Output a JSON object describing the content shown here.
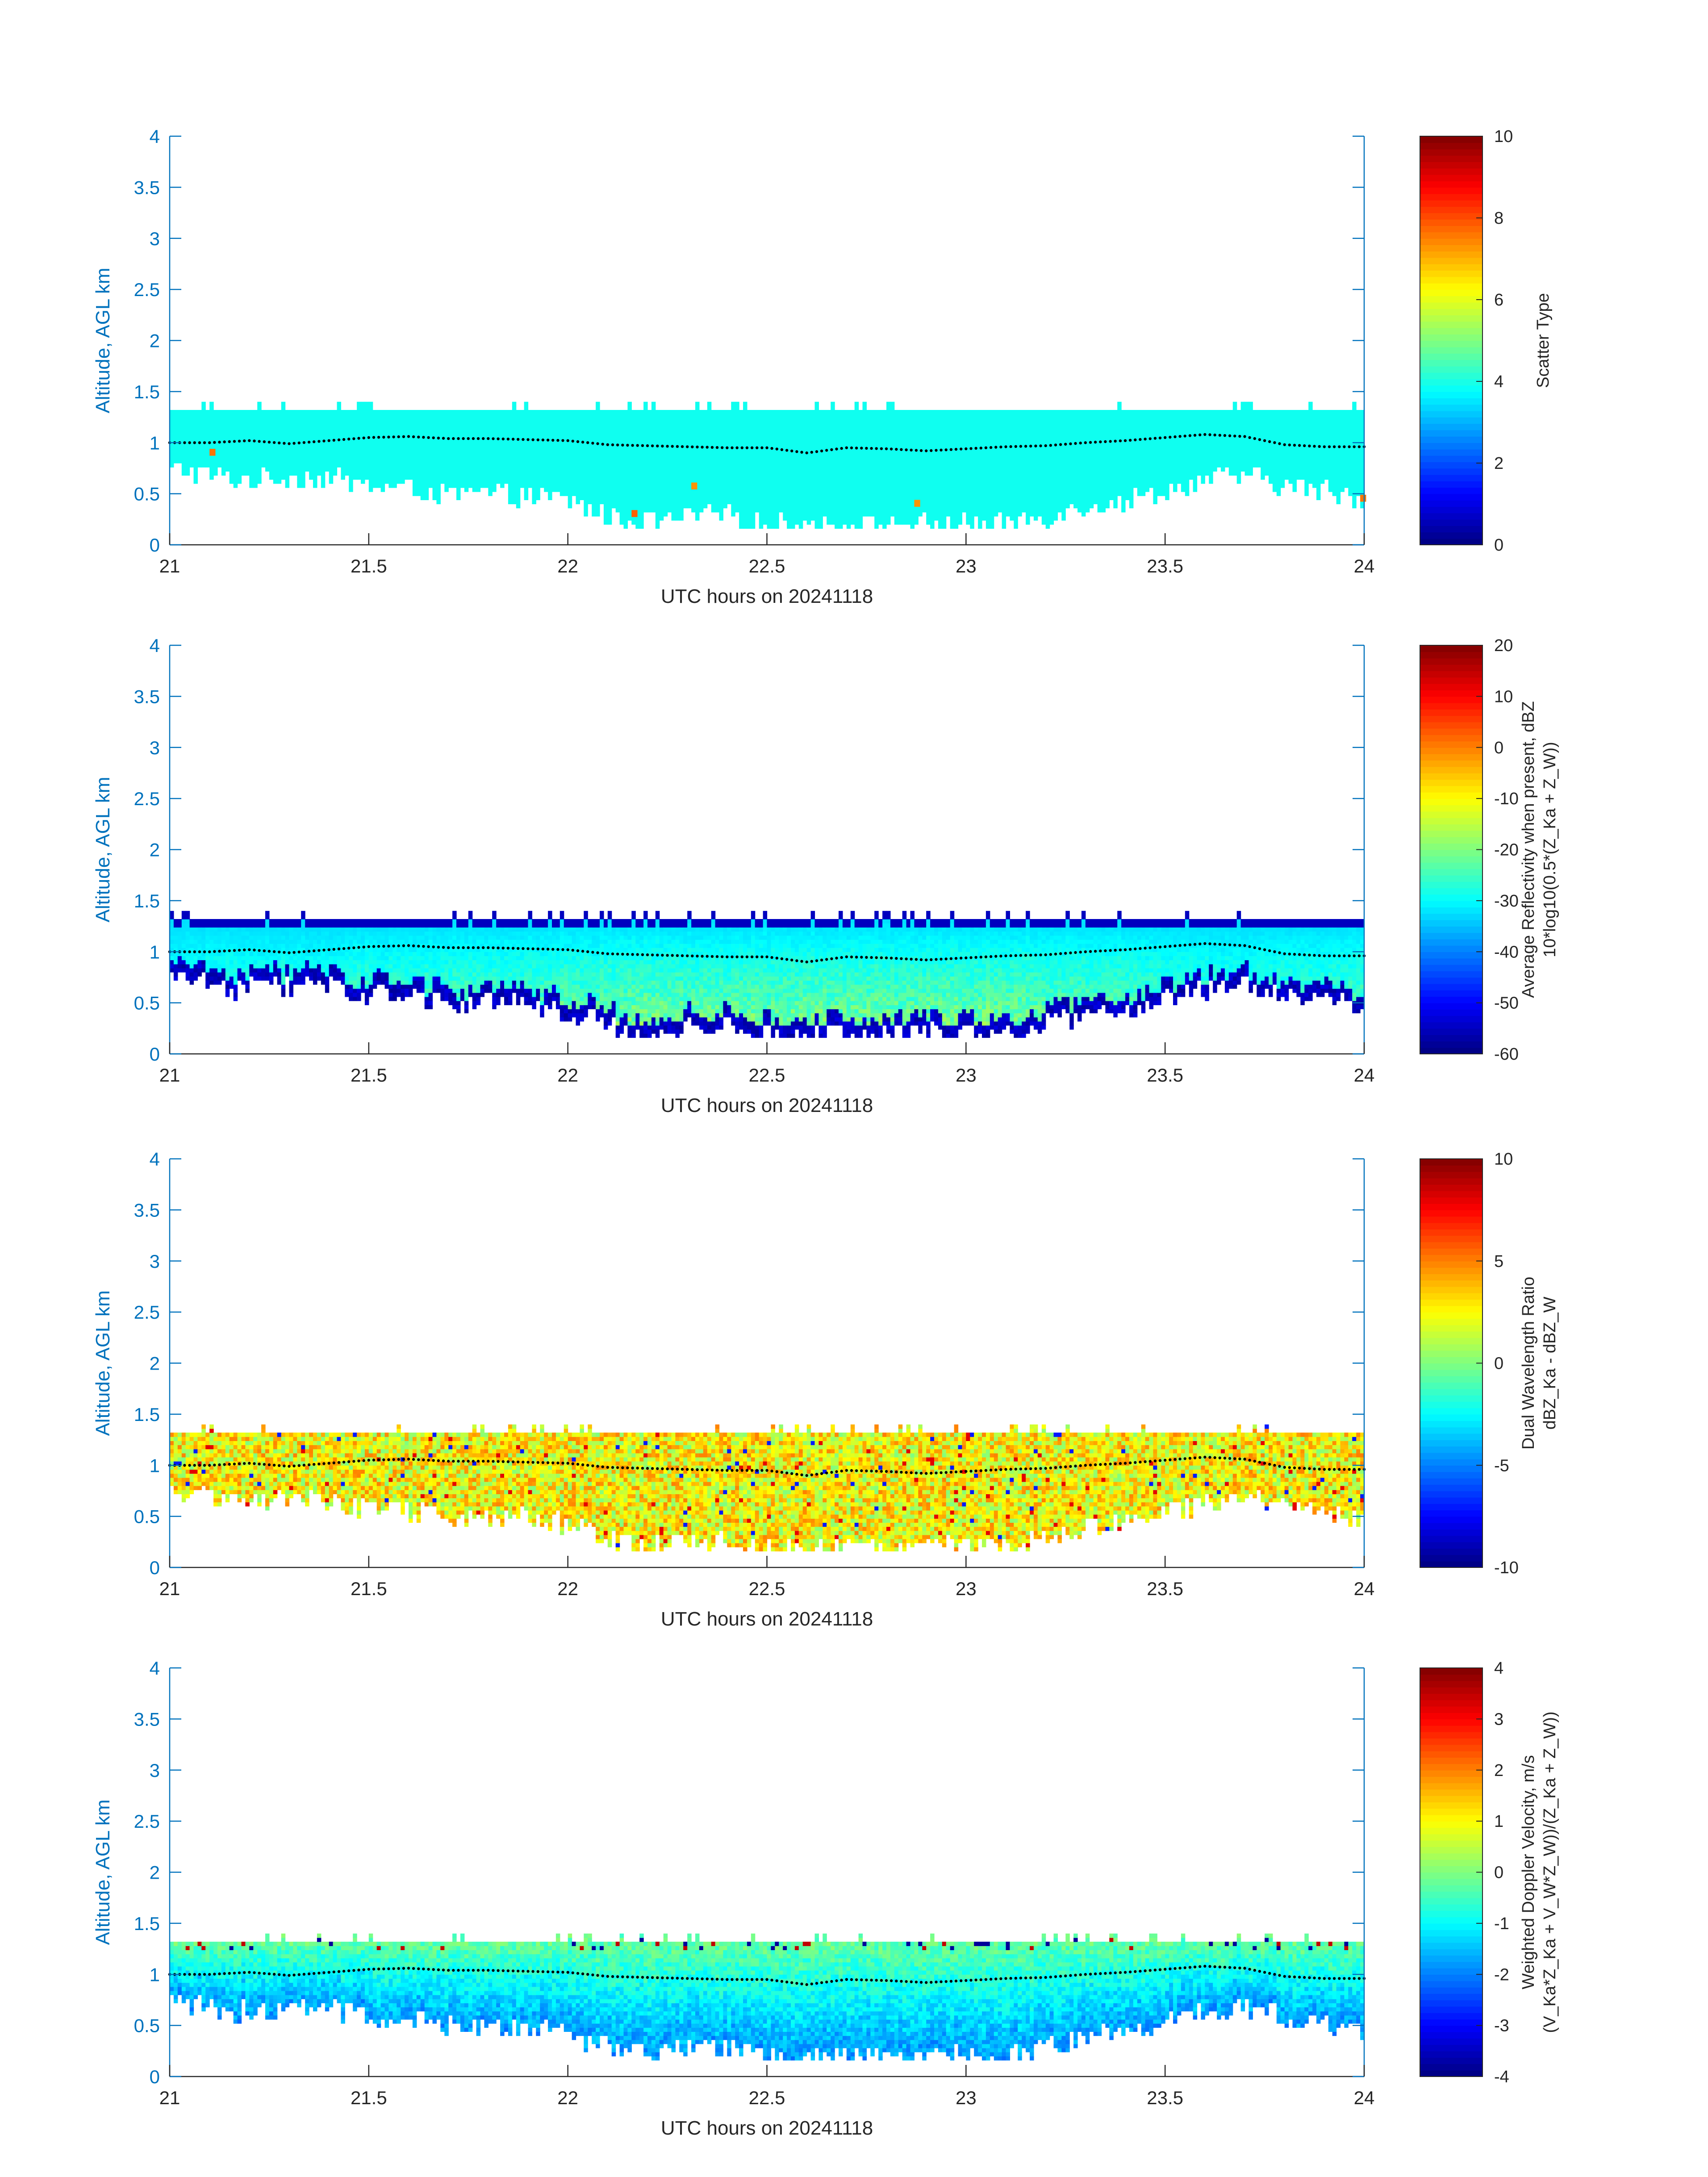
{
  "colors": {
    "axis_blue": "#0072bd",
    "text_dark": "#262626",
    "colormap": "jet"
  },
  "chart_data": [
    {
      "type": "heatmap",
      "panel_id": "scatter-type",
      "xlabel": "UTC hours on 20241118",
      "ylabel": "Altitude, AGL km",
      "xlim": [
        21,
        24
      ],
      "ylim": [
        0,
        4
      ],
      "xticks": [
        21,
        21.5,
        22,
        22.5,
        23,
        23.5,
        24
      ],
      "xtick_labels": [
        "21",
        "21.5",
        "22",
        "22.5",
        "23",
        "23.5",
        "24"
      ],
      "yticks": [
        0,
        0.5,
        1,
        1.5,
        2,
        2.5,
        3,
        3.5,
        4
      ],
      "ytick_labels": [
        "0",
        "0.5",
        "1",
        "1.5",
        "2",
        "2.5",
        "3",
        "3.5",
        "4"
      ],
      "colorbar": {
        "label_lines": [
          "Scatter Type"
        ],
        "range": [
          0,
          10
        ],
        "ticks": [
          0,
          2,
          4,
          6,
          8,
          10
        ],
        "tick_labels": [
          "0",
          "2",
          "4",
          "6",
          "8",
          "10"
        ]
      },
      "cloud_top_km": 1.32,
      "dominant_value": 3.9,
      "sparse_values": [
        {
          "x": 21.1,
          "y": 0.9,
          "value": 7.6
        },
        {
          "x": 22.16,
          "y": 0.3,
          "value": 7.8
        },
        {
          "x": 22.31,
          "y": 0.57,
          "value": 7.3
        },
        {
          "x": 22.87,
          "y": 0.4,
          "value": 7.3
        },
        {
          "x": 23.99,
          "y": 0.45,
          "value": 7.6
        }
      ]
    },
    {
      "type": "heatmap",
      "panel_id": "reflectivity",
      "xlabel": "UTC hours on 20241118",
      "ylabel": "Altitude, AGL km",
      "xlim": [
        21,
        24
      ],
      "ylim": [
        0,
        4
      ],
      "xticks": [
        21,
        21.5,
        22,
        22.5,
        23,
        23.5,
        24
      ],
      "xtick_labels": [
        "21",
        "21.5",
        "22",
        "22.5",
        "23",
        "23.5",
        "24"
      ],
      "yticks": [
        0,
        0.5,
        1,
        1.5,
        2,
        2.5,
        3,
        3.5,
        4
      ],
      "ytick_labels": [
        "0",
        "0.5",
        "1",
        "1.5",
        "2",
        "2.5",
        "3",
        "3.5",
        "4"
      ],
      "colorbar": {
        "label_lines": [
          "Average Reflectivity when present, dBZ",
          "10*log10(0.5*(Z_Ka + Z_W))"
        ],
        "range": [
          -60,
          20
        ],
        "ticks": [
          -60,
          -50,
          -40,
          -30,
          -20,
          -10,
          0,
          10,
          20
        ],
        "tick_labels": [
          "-60",
          "-50",
          "-40",
          "-30",
          "-20",
          "-10",
          "0",
          "10",
          "20"
        ]
      },
      "cloud_top_km": 1.32,
      "value_at_top": -33,
      "value_at_base": -55,
      "value_core_max": -15
    },
    {
      "type": "heatmap",
      "panel_id": "dwr",
      "xlabel": "UTC hours on 20241118",
      "ylabel": "Altitude, AGL km",
      "xlim": [
        21,
        24
      ],
      "ylim": [
        0,
        4
      ],
      "xticks": [
        21,
        21.5,
        22,
        22.5,
        23,
        23.5,
        24
      ],
      "xtick_labels": [
        "21",
        "21.5",
        "22",
        "22.5",
        "23",
        "23.5",
        "24"
      ],
      "yticks": [
        0,
        0.5,
        1,
        1.5,
        2,
        2.5,
        3,
        3.5,
        4
      ],
      "ytick_labels": [
        "0",
        "0.5",
        "1",
        "1.5",
        "2",
        "2.5",
        "3",
        "3.5",
        "4"
      ],
      "colorbar": {
        "label_lines": [
          "Dual Wavelength Ratio",
          "dBZ_Ka - dBZ_W"
        ],
        "range": [
          -10,
          10
        ],
        "ticks": [
          -10,
          -5,
          0,
          5,
          10
        ],
        "tick_labels": [
          "-10",
          "-5",
          "0",
          "5",
          "10"
        ]
      },
      "cloud_top_km": 1.32,
      "typical_value": 2.5,
      "spread": 2.5
    },
    {
      "type": "heatmap",
      "panel_id": "doppler",
      "xlabel": "UTC hours on 20241118",
      "ylabel": "Altitude, AGL km",
      "xlim": [
        21,
        24
      ],
      "ylim": [
        0,
        4
      ],
      "xticks": [
        21,
        21.5,
        22,
        22.5,
        23,
        23.5,
        24
      ],
      "xtick_labels": [
        "21",
        "21.5",
        "22",
        "22.5",
        "23",
        "23.5",
        "24"
      ],
      "yticks": [
        0,
        0.5,
        1,
        1.5,
        2,
        2.5,
        3,
        3.5,
        4
      ],
      "ytick_labels": [
        "0",
        "0.5",
        "1",
        "1.5",
        "2",
        "2.5",
        "3",
        "3.5",
        "4"
      ],
      "colorbar": {
        "label_lines": [
          "Weighted Doppler Velocity, m/s",
          "(V_Ka*Z_Ka + V_W*Z_W))/(Z_Ka + Z_W))"
        ],
        "range": [
          -4,
          4
        ],
        "ticks": [
          -4,
          -3,
          -2,
          -1,
          0,
          1,
          2,
          3,
          4
        ],
        "tick_labels": [
          "-4",
          "-3",
          "-2",
          "-1",
          "0",
          "1",
          "2",
          "3",
          "4"
        ]
      },
      "cloud_top_km": 1.32,
      "value_at_top": -0.2,
      "value_at_base": -1.8
    }
  ],
  "cloud_base_profile": {
    "x": [
      21.0,
      21.1,
      21.15,
      21.25,
      21.4,
      21.5,
      21.6,
      21.7,
      21.8,
      21.9,
      22.0,
      22.1,
      22.2,
      22.3,
      22.4,
      22.5,
      22.6,
      22.7,
      22.8,
      22.9,
      23.0,
      23.1,
      23.2,
      23.3,
      23.4,
      23.5,
      23.6,
      23.7,
      23.8,
      23.9,
      24.0
    ],
    "y": [
      0.75,
      0.72,
      0.65,
      0.68,
      0.68,
      0.6,
      0.58,
      0.5,
      0.52,
      0.5,
      0.45,
      0.3,
      0.22,
      0.3,
      0.3,
      0.22,
      0.22,
      0.22,
      0.22,
      0.22,
      0.22,
      0.22,
      0.3,
      0.4,
      0.45,
      0.55,
      0.65,
      0.7,
      0.6,
      0.55,
      0.48
    ]
  },
  "dotted_line": {
    "x": [
      21.0,
      21.1,
      21.2,
      21.3,
      21.4,
      21.5,
      21.6,
      21.7,
      21.8,
      21.9,
      22.0,
      22.1,
      22.2,
      22.3,
      22.4,
      22.5,
      22.6,
      22.7,
      22.8,
      22.9,
      23.0,
      23.1,
      23.2,
      23.3,
      23.4,
      23.5,
      23.6,
      23.7,
      23.8,
      23.9,
      24.0
    ],
    "y": [
      1.0,
      1.0,
      1.02,
      0.99,
      1.02,
      1.05,
      1.06,
      1.04,
      1.04,
      1.03,
      1.02,
      0.98,
      0.97,
      0.96,
      0.95,
      0.95,
      0.9,
      0.95,
      0.94,
      0.92,
      0.94,
      0.96,
      0.97,
      1.0,
      1.02,
      1.05,
      1.08,
      1.06,
      0.98,
      0.96,
      0.96
    ]
  }
}
